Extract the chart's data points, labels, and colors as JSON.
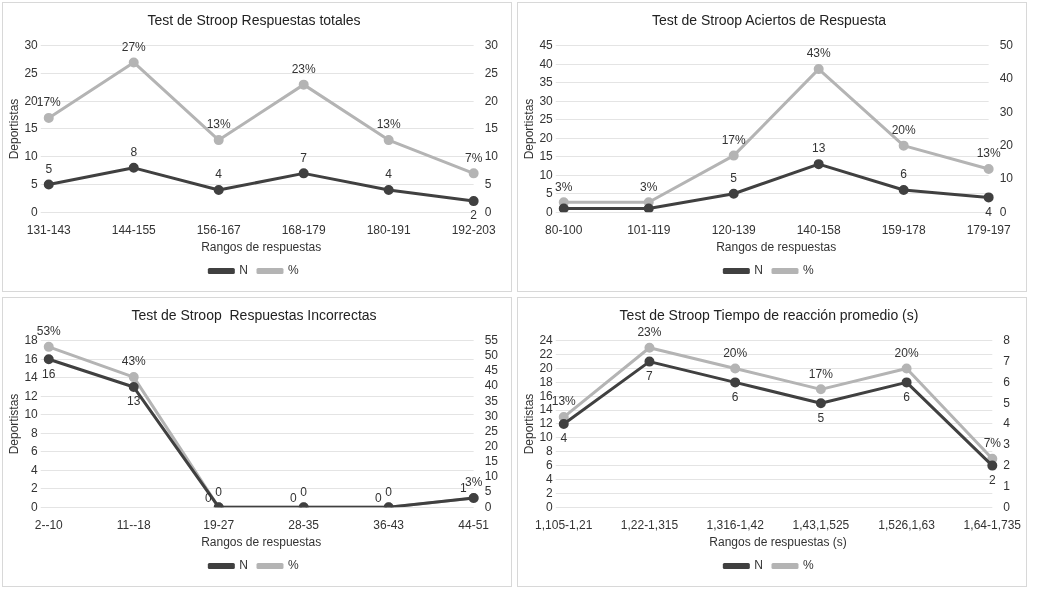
{
  "chart_data": [
    {
      "type": "line",
      "title": "Test de Stroop Respuestas totales",
      "xlabel": "Rangos de respuestas",
      "ylabel": "Deportistas",
      "categories": [
        "131-143",
        "144-155",
        "156-167",
        "168-179",
        "180-191",
        "192-203"
      ],
      "series": [
        {
          "name": "N",
          "color": "#404040",
          "values": [
            5,
            8,
            4,
            7,
            4,
            2
          ],
          "value_labels": [
            "5",
            "8",
            "4",
            "7",
            "4",
            "2"
          ]
        },
        {
          "name": "%",
          "color": "#b4b4b4",
          "axis": "y2",
          "values": [
            17,
            27,
            13,
            23,
            13,
            7
          ],
          "value_labels": [
            "17%",
            "27%",
            "13%",
            "23%",
            "13%",
            "7%"
          ]
        }
      ],
      "ylim": [
        0,
        30
      ],
      "yticks": [
        0,
        5,
        10,
        15,
        20,
        25,
        30
      ],
      "y2lim": [
        0,
        30
      ],
      "y2ticks": [
        0,
        5,
        10,
        15,
        20,
        25,
        30
      ],
      "grid": "y",
      "legend": "bottom",
      "marker": "circle",
      "line_style": "solid"
    },
    {
      "type": "line",
      "title": "Test de Stroop Aciertos de Respuesta",
      "xlabel": "Rangos de respuestas",
      "ylabel": "Deportistas",
      "categories": [
        "80-100",
        "101-119",
        "120-139",
        "140-158",
        "159-178",
        "179-197"
      ],
      "series": [
        {
          "name": "N",
          "color": "#404040",
          "values": [
            1,
            1,
            5,
            13,
            6,
            4
          ],
          "value_labels": [
            null,
            null,
            "5",
            "13",
            "6",
            "4"
          ]
        },
        {
          "name": "%",
          "color": "#b4b4b4",
          "axis": "y2",
          "values": [
            3,
            3,
            17,
            43,
            20,
            13
          ],
          "value_labels": [
            "3%",
            "3%",
            "17%",
            "43%",
            "20%",
            "13%"
          ]
        }
      ],
      "ylim": [
        0,
        45
      ],
      "yticks": [
        0,
        5,
        10,
        15,
        20,
        25,
        30,
        35,
        40,
        45
      ],
      "y2lim": [
        0,
        50
      ],
      "y2ticks": [
        0,
        10,
        20,
        30,
        40,
        50
      ],
      "grid": "y",
      "legend": "bottom",
      "marker": "circle",
      "line_style": "solid"
    },
    {
      "type": "line",
      "title": "Test de Stroop  Respuestas Incorrectas",
      "xlabel": "Rangos de respuestas",
      "ylabel": "Deportistas",
      "categories": [
        "2--10",
        "11--18",
        "19-27",
        "28-35",
        "36-43",
        "44-51"
      ],
      "series": [
        {
          "name": "N",
          "color": "#404040",
          "values": [
            16,
            13,
            0,
            0,
            0,
            1
          ],
          "value_labels": [
            "16",
            "13",
            "0",
            "0",
            "0",
            "1"
          ]
        },
        {
          "name": "%",
          "color": "#b4b4b4",
          "axis": "y2",
          "values": [
            53,
            43,
            0,
            0,
            0,
            3
          ],
          "value_labels": [
            "53%",
            "43%",
            "0",
            "0",
            "0",
            "3%"
          ]
        }
      ],
      "ylim": [
        0,
        18
      ],
      "yticks": [
        0,
        2,
        4,
        6,
        8,
        10,
        12,
        14,
        16,
        18
      ],
      "y2lim": [
        0,
        55
      ],
      "y2ticks": [
        0,
        5,
        10,
        15,
        20,
        25,
        30,
        35,
        40,
        45,
        50,
        55
      ],
      "grid": "y",
      "legend": "bottom",
      "marker": "circle",
      "line_style": "solid"
    },
    {
      "type": "line",
      "title": "Test de Stroop Tiempo de reacción promedio (s)",
      "xlabel": "Rangos de respuestas (s)",
      "ylabel": "Deportistas",
      "categories": [
        "1,105-1,21",
        "1,22-1,315",
        "1,316-1,42",
        "1,43,1,525",
        "1,526,1,63",
        "1,64-1,735"
      ],
      "series": [
        {
          "name": "N",
          "color": "#404040",
          "axis": "y2",
          "values": [
            4,
            7,
            6,
            5,
            6,
            2
          ],
          "value_labels": [
            "4",
            "7",
            "6",
            "5",
            "6",
            "2"
          ]
        },
        {
          "name": "%",
          "color": "#b4b4b4",
          "values": [
            13,
            23,
            20,
            17,
            20,
            7
          ],
          "value_labels": [
            "13%",
            "23%",
            "20%",
            "17%",
            "20%",
            "7%"
          ]
        }
      ],
      "ylim": [
        0,
        24
      ],
      "yticks": [
        0,
        2,
        4,
        6,
        8,
        10,
        12,
        14,
        16,
        18,
        20,
        22,
        24
      ],
      "y2lim": [
        0,
        8
      ],
      "y2ticks": [
        0,
        1,
        2,
        3,
        4,
        5,
        6,
        7,
        8
      ],
      "grid": "y",
      "legend": "bottom",
      "marker": "circle",
      "line_style": "solid"
    }
  ]
}
